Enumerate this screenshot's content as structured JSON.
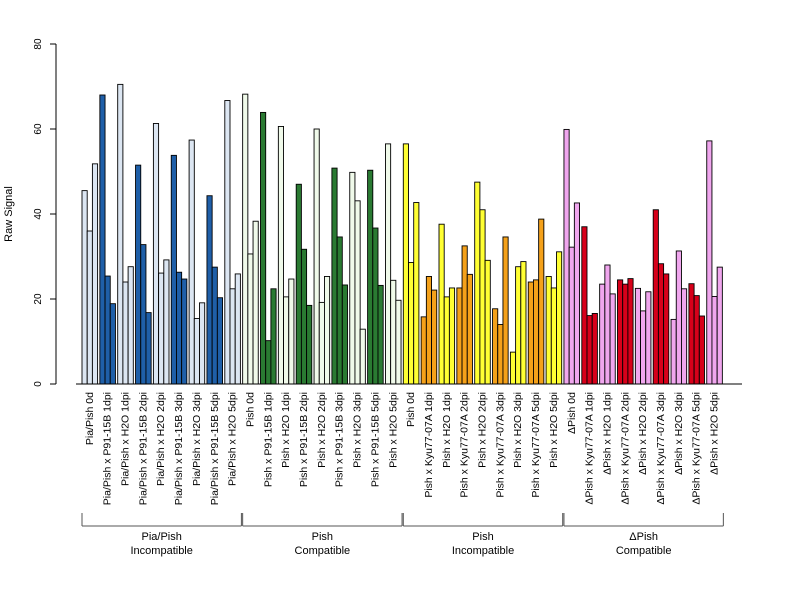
{
  "chart_data": {
    "type": "bar",
    "ylabel": "Raw Signal",
    "ylim": [
      0,
      80
    ],
    "yticks": [
      0,
      20,
      40,
      60,
      80
    ],
    "colors": {
      "light_blue": "#dce6f2",
      "dark_blue": "#1f5fa8",
      "light_green": "#f0faea",
      "dark_green": "#2a7a32",
      "yellow": "#ffff33",
      "orange": "#f4a11a",
      "pink": "#f0a6ee",
      "red": "#d7001a"
    },
    "categories": [
      {
        "label": "Pia/Pish 0d",
        "color": "light_blue",
        "values": [
          45.5,
          36.0,
          51.8
        ]
      },
      {
        "label": "Pia/Pish x P91-15B 1dpi",
        "color": "dark_blue",
        "values": [
          68.0,
          25.4,
          18.9
        ]
      },
      {
        "label": "Pia/Pish x H2O 1dpi",
        "color": "light_blue",
        "values": [
          70.5,
          24.0,
          27.6
        ]
      },
      {
        "label": "Pia/Pish x P91-15B 2dpi",
        "color": "dark_blue",
        "values": [
          51.5,
          32.8,
          16.8
        ]
      },
      {
        "label": "Pia/Pish x H2O 2dpi",
        "color": "light_blue",
        "values": [
          61.3,
          26.1,
          29.2
        ]
      },
      {
        "label": "Pia/Pish x P91-15B 3dpi",
        "color": "dark_blue",
        "values": [
          53.8,
          26.3,
          24.7
        ]
      },
      {
        "label": "Pia/Pish x H2O 3dpi",
        "color": "light_blue",
        "values": [
          57.4,
          15.4,
          19.1
        ]
      },
      {
        "label": "Pia/Pish x P91-15B 5dpi",
        "color": "dark_blue",
        "values": [
          44.3,
          27.5,
          20.3
        ]
      },
      {
        "label": "Pia/Pish x H2O 5dpi",
        "color": "light_blue",
        "values": [
          66.7,
          22.4,
          25.9
        ]
      },
      {
        "label": "Pish 0d",
        "color": "light_green",
        "values": [
          68.2,
          30.6,
          38.3
        ]
      },
      {
        "label": "Pish x P91-15B 1dpi",
        "color": "dark_green",
        "values": [
          63.9,
          10.2,
          22.4
        ]
      },
      {
        "label": "Pish x H2O 1dpi",
        "color": "light_green",
        "values": [
          60.6,
          20.5,
          24.7
        ]
      },
      {
        "label": "Pish x P91-15B 2dpi",
        "color": "dark_green",
        "values": [
          47.0,
          31.7,
          18.5
        ]
      },
      {
        "label": "Pish x H2O 2dpi",
        "color": "light_green",
        "values": [
          60.0,
          19.2,
          25.3
        ]
      },
      {
        "label": "Pish x P91-15B 3dpi",
        "color": "dark_green",
        "values": [
          50.8,
          34.6,
          23.3
        ]
      },
      {
        "label": "Pish x H2O 3dpi",
        "color": "light_green",
        "values": [
          49.8,
          43.1,
          12.9
        ]
      },
      {
        "label": "Pish x P91-15B 5dpi",
        "color": "dark_green",
        "values": [
          50.3,
          36.7,
          23.2
        ]
      },
      {
        "label": "Pish x H2O 5dpi",
        "color": "light_green",
        "values": [
          56.5,
          24.4,
          19.7
        ]
      },
      {
        "label": "Pish 0d",
        "color": "yellow",
        "values": [
          56.5,
          28.6,
          42.7
        ]
      },
      {
        "label": "Pish x Kyu77-07A 1dpi",
        "color": "orange",
        "values": [
          15.8,
          25.3,
          22.1
        ]
      },
      {
        "label": "Pish x H2O 1dpi",
        "color": "yellow",
        "values": [
          37.6,
          20.5,
          22.6
        ]
      },
      {
        "label": "Pish x Kyu77-07A 2dpi",
        "color": "orange",
        "values": [
          22.6,
          32.5,
          25.8
        ]
      },
      {
        "label": "Pish x H2O 2dpi",
        "color": "yellow",
        "values": [
          47.5,
          41.0,
          29.1
        ]
      },
      {
        "label": "Pish x Kyu77-07A 3dpi",
        "color": "orange",
        "values": [
          17.7,
          14.0,
          34.6
        ]
      },
      {
        "label": "Pish x H2O 3dpi",
        "color": "yellow",
        "values": [
          7.5,
          27.6,
          28.8
        ]
      },
      {
        "label": "Pish x Kyu77-07A 5dpi",
        "color": "orange",
        "values": [
          24.0,
          24.5,
          38.8
        ]
      },
      {
        "label": "Pish x H2O 5dpi",
        "color": "yellow",
        "values": [
          25.3,
          22.6,
          31.1
        ]
      },
      {
        "label": "ΔPish 0d",
        "color": "pink",
        "values": [
          59.9,
          32.2,
          42.6
        ]
      },
      {
        "label": "ΔPish x Kyu77-07A 1dpi",
        "color": "red",
        "values": [
          37.0,
          16.1,
          16.6
        ]
      },
      {
        "label": "ΔPish x H2O 1dpi",
        "color": "pink",
        "values": [
          23.5,
          28.0,
          21.2
        ]
      },
      {
        "label": "ΔPish x Kyu77-07A 2dpi",
        "color": "red",
        "values": [
          24.5,
          23.5,
          24.8
        ]
      },
      {
        "label": "ΔPish x H2O 2dpi",
        "color": "pink",
        "values": [
          22.5,
          17.2,
          21.7
        ]
      },
      {
        "label": "ΔPish x Kyu77-07A 3dpi",
        "color": "red",
        "values": [
          41.0,
          28.3,
          25.9
        ]
      },
      {
        "label": "ΔPish x H2O 3dpi",
        "color": "pink",
        "values": [
          15.2,
          31.3,
          22.4
        ]
      },
      {
        "label": "ΔPish x Kyu77-07A 5dpi",
        "color": "red",
        "values": [
          23.6,
          20.8,
          16.0
        ]
      },
      {
        "label": "ΔPish x H2O 5dpi",
        "color": "pink",
        "values": [
          57.2,
          20.6,
          27.5
        ]
      }
    ],
    "groups": [
      {
        "line1": "Pia/Pish",
        "line2": "Incompatible",
        "start": 0,
        "end": 8
      },
      {
        "line1": "Pish",
        "line2": "Compatible",
        "start": 9,
        "end": 17
      },
      {
        "line1": "Pish",
        "line2": "Incompatible",
        "start": 18,
        "end": 26
      },
      {
        "line1": "ΔPish",
        "line2": "Compatible",
        "start": 27,
        "end": 35
      }
    ]
  }
}
